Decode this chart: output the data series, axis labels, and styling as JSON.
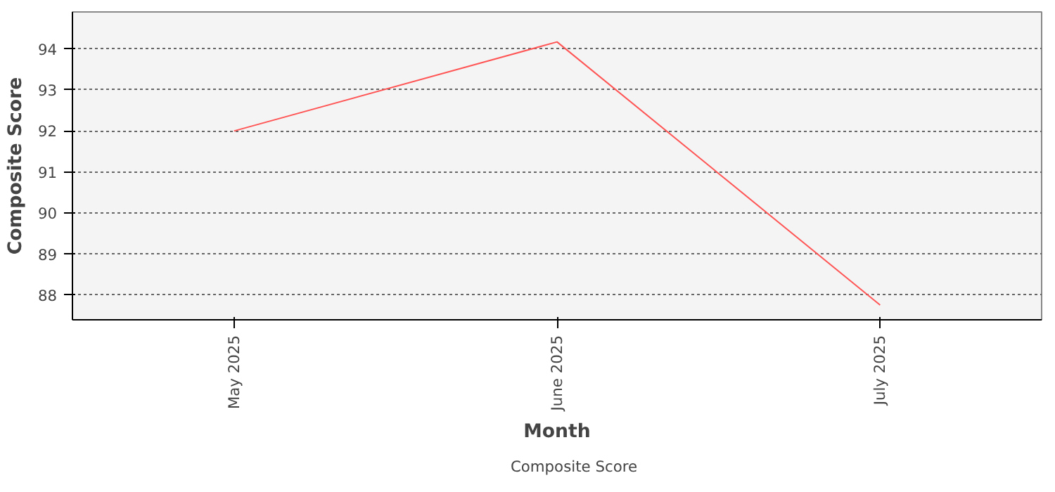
{
  "chart_data": {
    "type": "line",
    "xlabel": "Month",
    "ylabel": "Composite Score",
    "categories": [
      "May 2025",
      "June 2025",
      "July 2025"
    ],
    "series": [
      {
        "name": "Composite Score",
        "color": "#ff5555",
        "values": [
          92.0,
          94.17,
          87.76
        ]
      }
    ],
    "ylim": [
      87.4,
      94.9
    ],
    "yticks": [
      88,
      89,
      90,
      91,
      92,
      93,
      94
    ],
    "grid": "y",
    "legend": "bottom",
    "marker": "none",
    "line_style": "solid"
  }
}
